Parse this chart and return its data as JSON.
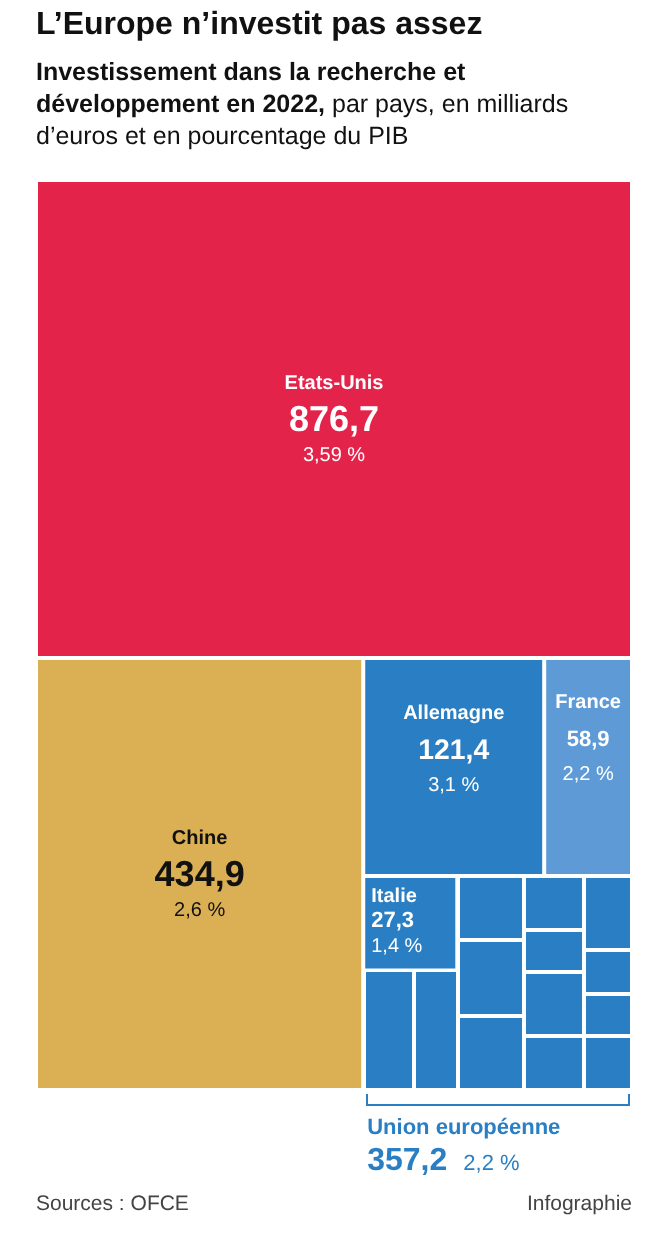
{
  "chart_data": {
    "type": "other",
    "title": "L’Europe n’investit pas assez",
    "subtitle": "Investissement dans la recherche et développement en 2022, par pays, en milliards d’euros et en pourcentage du PIB",
    "categories": [
      "Etats-Unis",
      "Chine",
      "Allemagne",
      "France",
      "Italie",
      "Union européenne"
    ],
    "series": [
      {
        "colors": [
          "#e4234b",
          "#dbb055",
          "#2a7fc4",
          "#5e9bd6",
          "#2a7fc4",
          "#2a7fc4"
        ],
        "values": [
          876.7,
          434.9,
          121.4,
          58.9,
          27.3,
          357.2
        ],
        "value_labels": [
          "876,7",
          "434,9",
          "121,4",
          "58,9",
          "27,3",
          "357,2"
        ]
      },
      {
        "values": [
          3.59,
          2.6,
          3.1,
          2.2,
          1.4,
          2.2
        ],
        "value_labels": [
          "3,59 %",
          "2,6 %",
          "3,1 %",
          "2,2 %",
          "1,4 %",
          "2,2 %"
        ]
      }
    ],
    "annotations": [
      "Sources : OFCE",
      "Infographie"
    ]
  }
}
